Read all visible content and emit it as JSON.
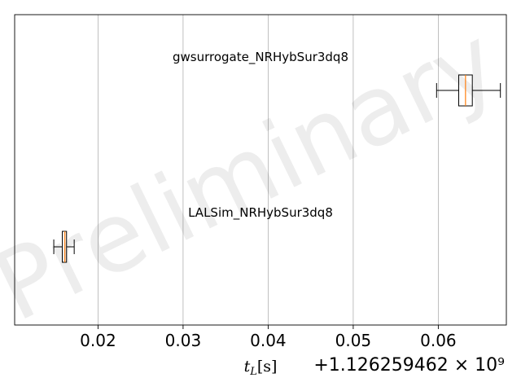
{
  "chart_data": {
    "type": "boxplot",
    "orientation": "horizontal",
    "xlabel": "t_L[s]",
    "xlabel_display": "tL[s]",
    "offset_text": "+1.126259462 × 10⁹",
    "offset_value": 1126259462,
    "xlim": [
      0.0102,
      0.068
    ],
    "xticks": [
      0.02,
      0.03,
      0.04,
      0.05,
      0.06
    ],
    "xtick_labels": [
      "0.02",
      "0.03",
      "0.04",
      "0.05",
      "0.06"
    ],
    "grid": "x",
    "watermark": "Preliminary",
    "series": [
      {
        "name": "gwsurrogate_NRHybSur3dq8",
        "whisker_low": 0.0598,
        "q1": 0.0624,
        "median": 0.0632,
        "q3": 0.064,
        "whisker_high": 0.0673
      },
      {
        "name": "LALSim_NRHybSur3dq8",
        "whisker_low": 0.0148,
        "q1": 0.0158,
        "median": 0.0161,
        "q3": 0.0163,
        "whisker_high": 0.0172
      }
    ],
    "colors": {
      "box": "#000000",
      "median": "#ff7f0e",
      "grid": "#b0b0b0"
    }
  }
}
